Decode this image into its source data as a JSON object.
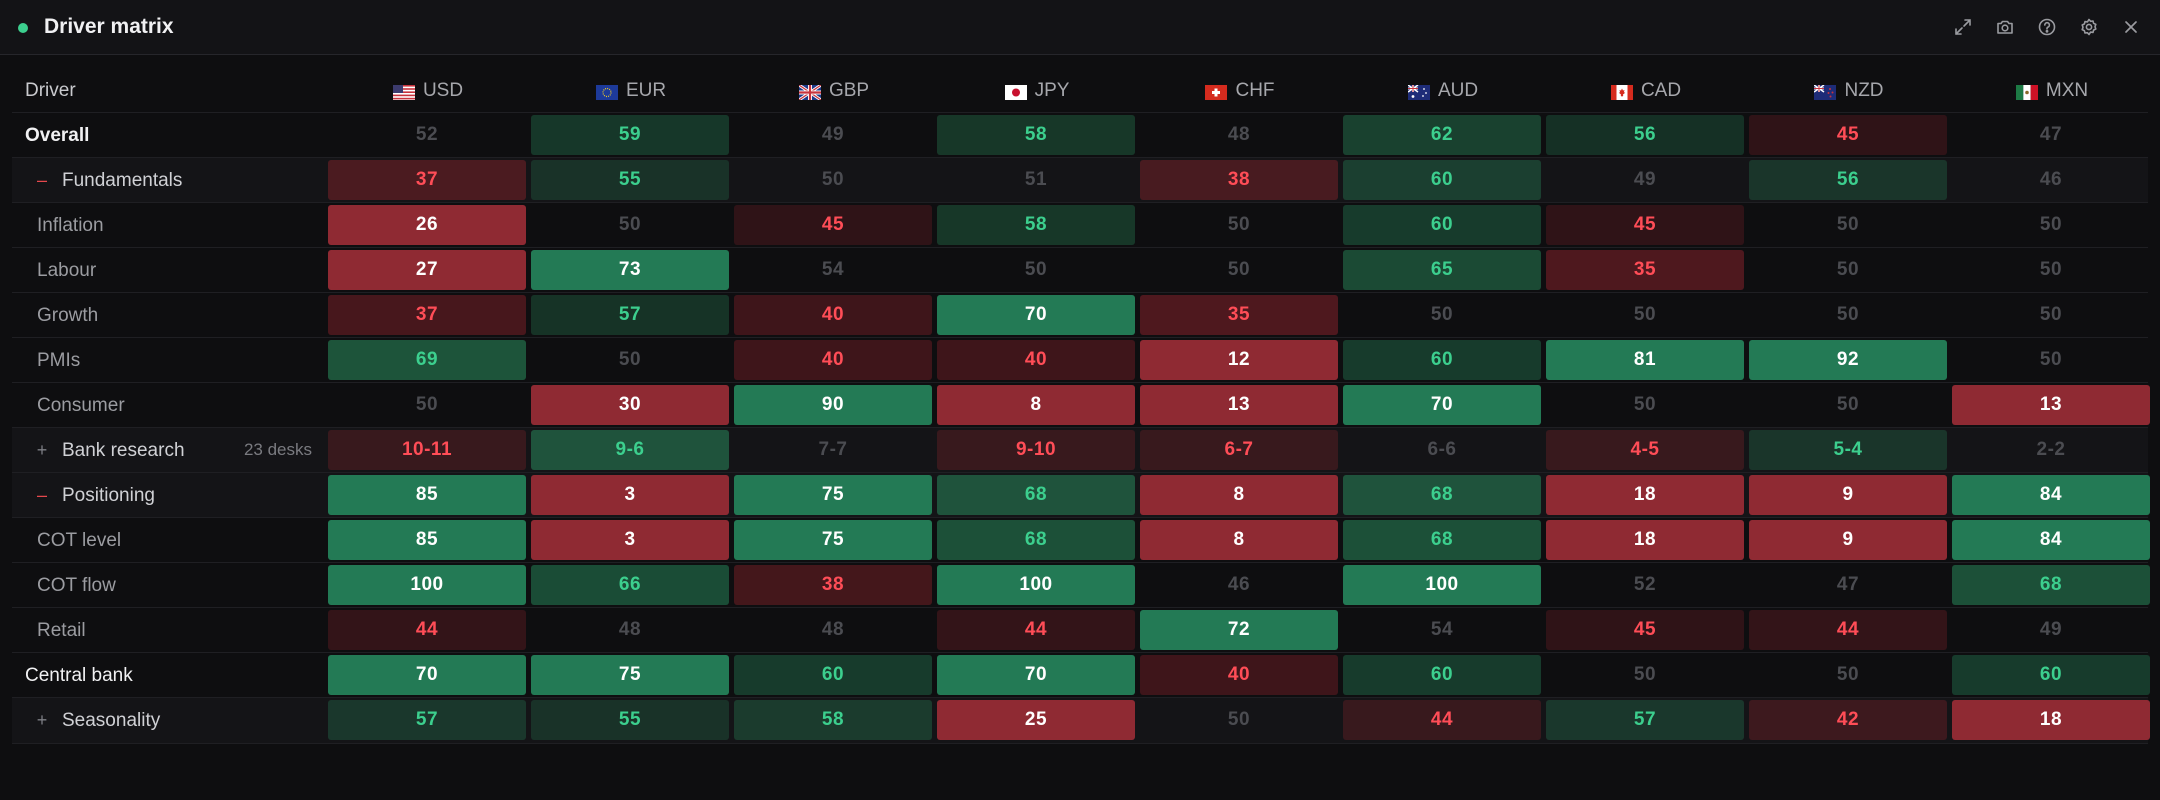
{
  "window": {
    "title": "Driver matrix"
  },
  "toolbar": {
    "icons": [
      "expand-icon",
      "camera-icon",
      "help-icon",
      "settings-icon",
      "close-icon"
    ]
  },
  "header": {
    "driver_label": "Driver",
    "currencies": [
      {
        "code": "USD",
        "flag": "us-flag-icon"
      },
      {
        "code": "EUR",
        "flag": "eu-flag-icon"
      },
      {
        "code": "GBP",
        "flag": "gb-flag-icon"
      },
      {
        "code": "JPY",
        "flag": "jp-flag-icon"
      },
      {
        "code": "CHF",
        "flag": "ch-flag-icon"
      },
      {
        "code": "AUD",
        "flag": "au-flag-icon"
      },
      {
        "code": "CAD",
        "flag": "ca-flag-icon"
      },
      {
        "code": "NZD",
        "flag": "nz-flag-icon"
      },
      {
        "code": "MXN",
        "flag": "mx-flag-icon"
      }
    ]
  },
  "colors": {
    "positive": "#3ccf8e",
    "negative": "#ff4d57",
    "neutral_text": "#4b4c51",
    "strong_positive_bg": "#237a55",
    "strong_negative_bg": "#8f2a33"
  },
  "rows": [
    {
      "label": "Overall",
      "style": "top-bold",
      "values": [
        "52",
        "59",
        "49",
        "58",
        "48",
        "62",
        "56",
        "45",
        "47"
      ]
    },
    {
      "label": "Fundamentals",
      "style": "section",
      "toggle": "–",
      "values": [
        "37",
        "55",
        "50",
        "51",
        "38",
        "60",
        "49",
        "56",
        "46"
      ]
    },
    {
      "label": "Inflation",
      "style": "sub",
      "values": [
        "26",
        "50",
        "45",
        "58",
        "50",
        "60",
        "45",
        "50",
        "50"
      ]
    },
    {
      "label": "Labour",
      "style": "sub",
      "values": [
        "27",
        "73",
        "54",
        "50",
        "50",
        "65",
        "35",
        "50",
        "50"
      ]
    },
    {
      "label": "Growth",
      "style": "sub",
      "values": [
        "37",
        "57",
        "40",
        "70",
        "35",
        "50",
        "50",
        "50",
        "50"
      ]
    },
    {
      "label": "PMIs",
      "style": "sub",
      "values": [
        "69",
        "50",
        "40",
        "40",
        "12",
        "60",
        "81",
        "92",
        "50"
      ]
    },
    {
      "label": "Consumer",
      "style": "sub",
      "values": [
        "50",
        "30",
        "90",
        "8",
        "13",
        "70",
        "50",
        "50",
        "13"
      ]
    },
    {
      "label": "Bank research",
      "style": "section",
      "toggle": "+",
      "note": "23 desks",
      "values": [
        "10-11",
        "9-6",
        "7-7",
        "9-10",
        "6-7",
        "6-6",
        "4-5",
        "5-4",
        "2-2"
      ]
    },
    {
      "label": "Positioning",
      "style": "section",
      "toggle": "–",
      "values": [
        "85",
        "3",
        "75",
        "68",
        "8",
        "68",
        "18",
        "9",
        "84"
      ]
    },
    {
      "label": "COT level",
      "style": "sub",
      "values": [
        "85",
        "3",
        "75",
        "68",
        "8",
        "68",
        "18",
        "9",
        "84"
      ]
    },
    {
      "label": "COT flow",
      "style": "sub",
      "values": [
        "100",
        "66",
        "38",
        "100",
        "46",
        "100",
        "52",
        "47",
        "68"
      ]
    },
    {
      "label": "Retail",
      "style": "sub",
      "values": [
        "44",
        "48",
        "48",
        "44",
        "72",
        "54",
        "45",
        "44",
        "49"
      ]
    },
    {
      "label": "Central bank",
      "style": "top",
      "values": [
        "70",
        "75",
        "60",
        "70",
        "40",
        "60",
        "50",
        "50",
        "60"
      ]
    },
    {
      "label": "Seasonality",
      "style": "section",
      "toggle": "+",
      "values": [
        "57",
        "55",
        "58",
        "25",
        "50",
        "44",
        "57",
        "42",
        "18"
      ]
    }
  ]
}
